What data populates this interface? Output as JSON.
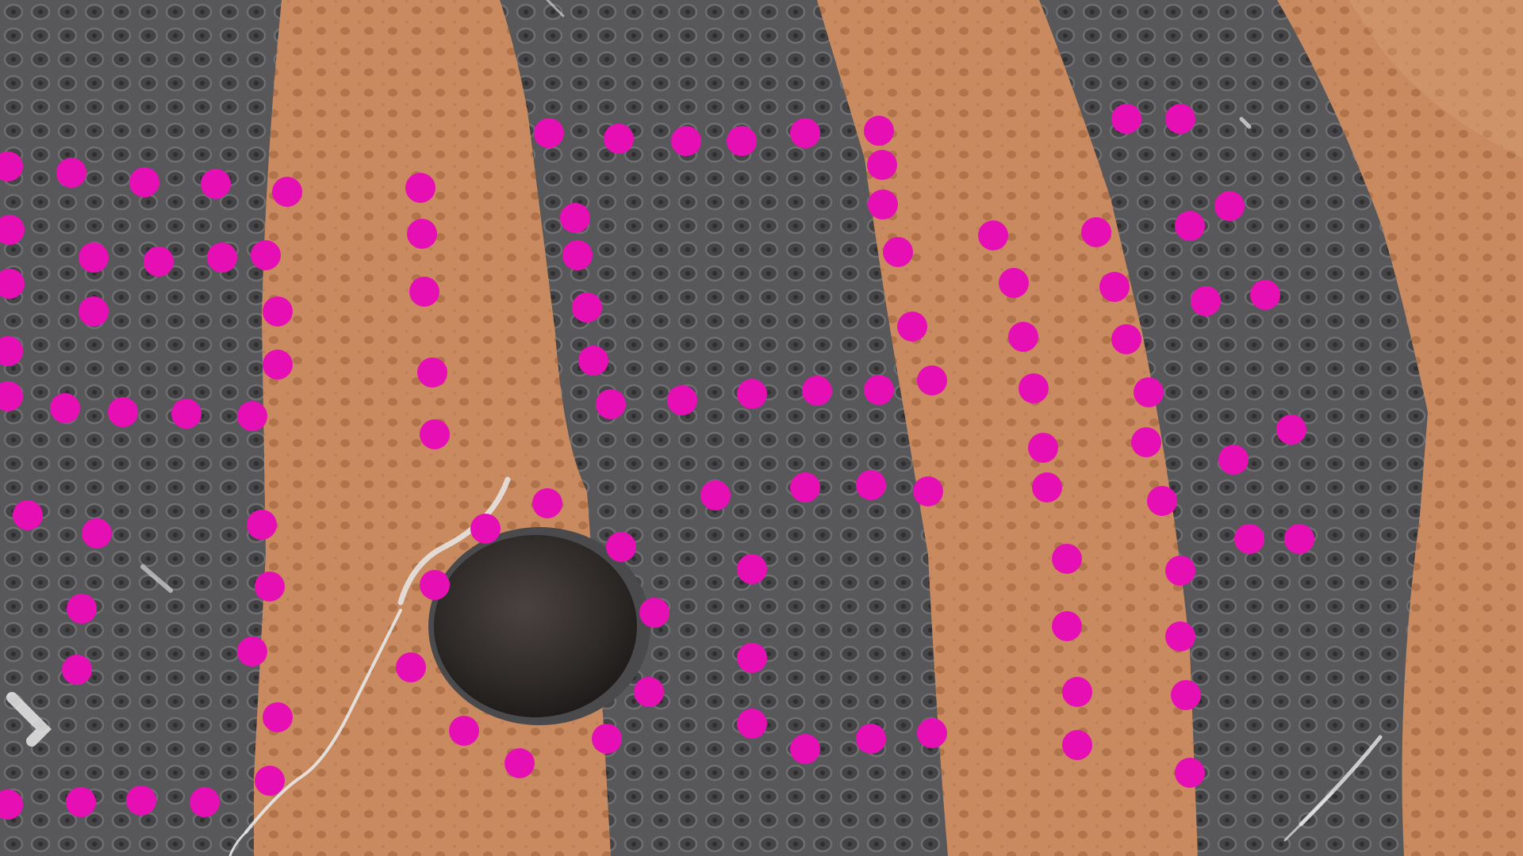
{
  "image": {
    "subject": "skin-texture-closeup",
    "colors": {
      "dark_band": "#58585a",
      "dark_band_shadow": "#3e3e40",
      "light_band": "#c98a60",
      "light_band_shadow": "#a9683f",
      "marker": "#e60fb4",
      "hole": "#2e2a28",
      "fiber": "#e8e8e8"
    }
  }
}
